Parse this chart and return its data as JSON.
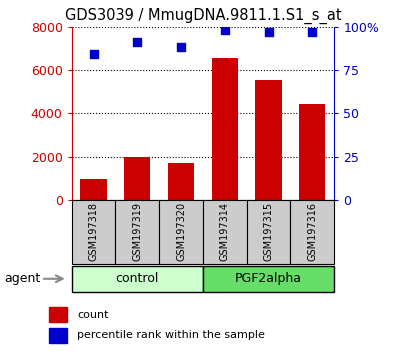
{
  "title": "GDS3039 / MmugDNA.9811.1.S1_s_at",
  "samples": [
    "GSM197318",
    "GSM197319",
    "GSM197320",
    "GSM197314",
    "GSM197315",
    "GSM197316"
  ],
  "counts": [
    950,
    1980,
    1720,
    6560,
    5550,
    4450
  ],
  "percentile_ranks": [
    84,
    91,
    88,
    98,
    97,
    97
  ],
  "ylim_left": [
    0,
    8000
  ],
  "ylim_right": [
    0,
    100
  ],
  "yticks_left": [
    0,
    2000,
    4000,
    6000,
    8000
  ],
  "yticks_right": [
    0,
    25,
    50,
    75,
    100
  ],
  "bar_color": "#cc0000",
  "dot_color": "#0000cc",
  "control_label": "control",
  "pgf2alpha_label": "PGF2alpha",
  "agent_label": "agent",
  "legend_count_label": "count",
  "legend_percentile_label": "percentile rank within the sample",
  "control_bg": "#ccffcc",
  "pgf2alpha_bg": "#66dd66",
  "sample_box_bg": "#cccccc",
  "left_axis_color": "#cc0000",
  "right_axis_color": "#0000cc",
  "title_fontsize": 10.5,
  "tick_fontsize": 9,
  "sample_fontsize": 7,
  "group_fontsize": 9,
  "legend_fontsize": 8,
  "agent_fontsize": 9
}
